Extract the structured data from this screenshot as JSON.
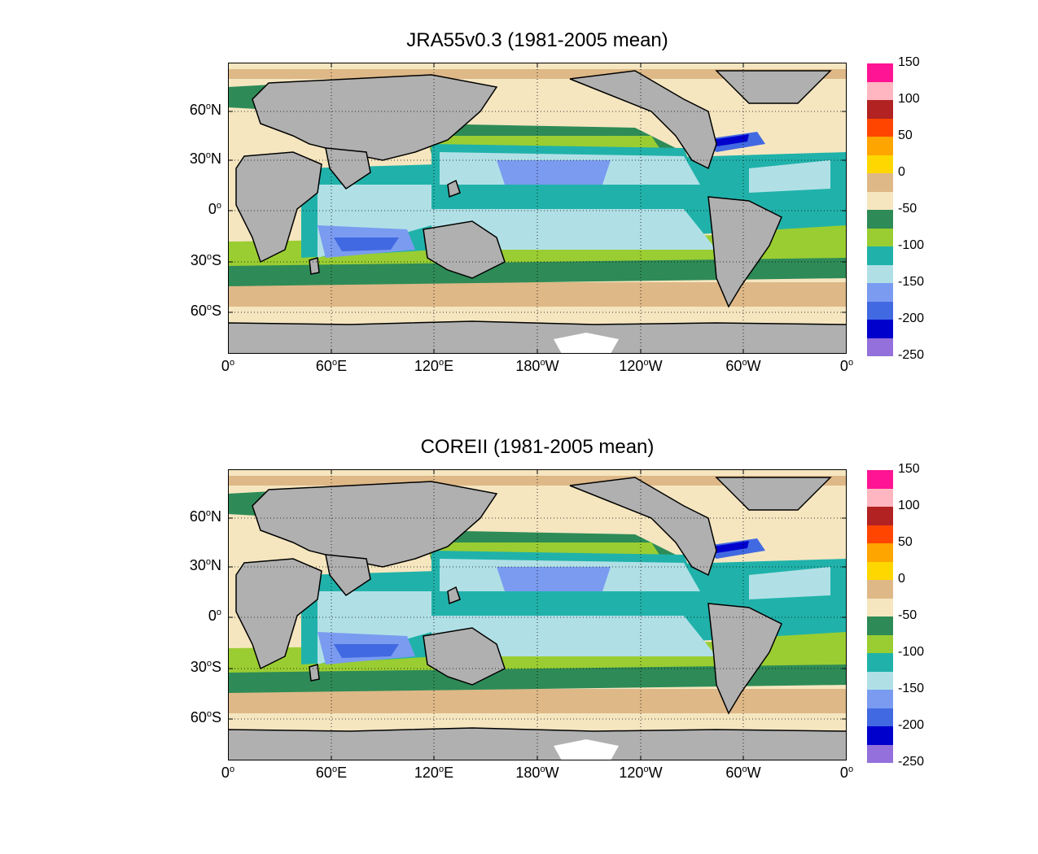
{
  "colors": {
    "land": "#b0b0b0",
    "ice": "#ffffff",
    "levels": [
      "#9370db",
      "#0000cd",
      "#4169e1",
      "#7b9bf0",
      "#b0e0e6",
      "#20b2aa",
      "#9acd32",
      "#2e8b57",
      "#f5e6c0",
      "#deb887",
      "#ffd700",
      "#ffa500",
      "#ff4500",
      "#b22222",
      "#ffb6c1",
      "#ff1493"
    ]
  },
  "colorbar": {
    "labels": [
      "150",
      "100",
      "50",
      "0",
      "-50",
      "-100",
      "-150",
      "-200",
      "-250"
    ]
  },
  "axes": {
    "x_ticks": [
      {
        "deg": "0",
        "hemi": ""
      },
      {
        "deg": "60",
        "hemi": "E"
      },
      {
        "deg": "120",
        "hemi": "E"
      },
      {
        "deg": "180",
        "hemi": "W"
      },
      {
        "deg": "120",
        "hemi": "W"
      },
      {
        "deg": "60",
        "hemi": "W"
      },
      {
        "deg": "0",
        "hemi": ""
      }
    ],
    "y_ticks": [
      {
        "deg": "60",
        "hemi": "N"
      },
      {
        "deg": "30",
        "hemi": "N"
      },
      {
        "deg": "0",
        "hemi": ""
      },
      {
        "deg": "30",
        "hemi": "S"
      },
      {
        "deg": "60",
        "hemi": "S"
      }
    ]
  },
  "panels": [
    {
      "title": "JRA55v0.3 (1981-2005 mean)"
    },
    {
      "title": "COREII (1981-2005 mean)"
    }
  ]
}
